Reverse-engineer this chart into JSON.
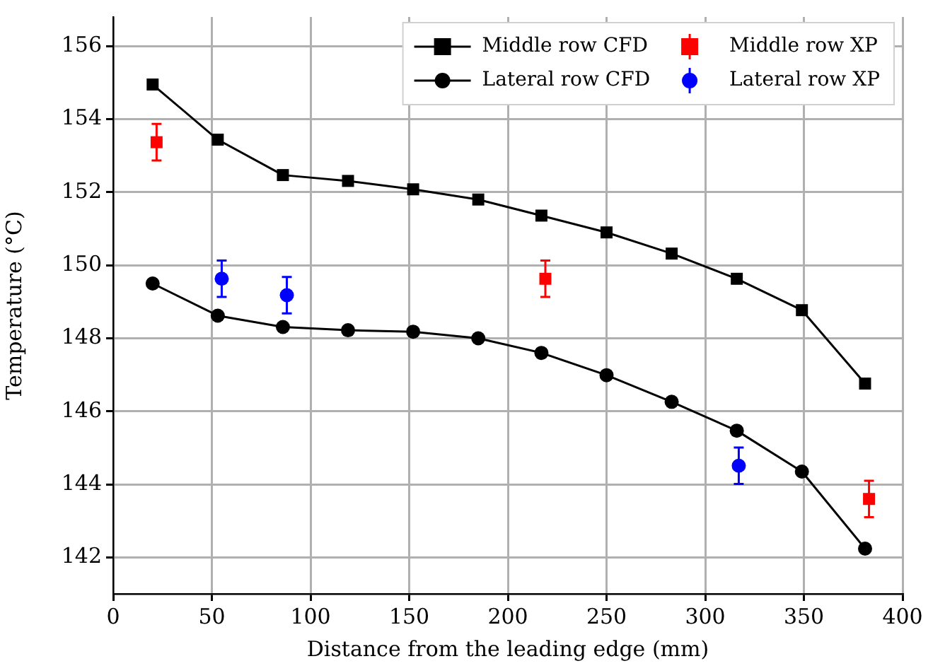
{
  "chart_data": {
    "type": "line",
    "xlabel": "Distance from the leading edge (mm)",
    "ylabel": "Temperature (°C)",
    "xlim": [
      0,
      400
    ],
    "xticks": [
      0,
      50,
      100,
      150,
      200,
      250,
      300,
      350,
      400
    ],
    "ylim": [
      141,
      156.8
    ],
    "yticks": [
      142,
      144,
      146,
      148,
      150,
      152,
      154,
      156
    ],
    "grid": true,
    "legend": "top right",
    "series": [
      {
        "name": "Middle row CFD",
        "type": "line",
        "color": "#000000",
        "marker": "square",
        "x": [
          20,
          53,
          86,
          119,
          152,
          185,
          217,
          250,
          283,
          316,
          349,
          381
        ],
        "values": [
          154.95,
          153.44,
          152.47,
          152.31,
          152.08,
          151.8,
          151.36,
          150.9,
          150.32,
          149.63,
          148.77,
          146.76
        ]
      },
      {
        "name": "Lateral row CFD",
        "type": "line",
        "color": "#000000",
        "marker": "circle",
        "x": [
          20,
          53,
          86,
          119,
          152,
          185,
          217,
          250,
          283,
          316,
          349,
          381
        ],
        "values": [
          149.5,
          148.62,
          148.31,
          148.22,
          148.18,
          148.0,
          147.6,
          146.99,
          146.26,
          145.47,
          144.35,
          142.24
        ]
      },
      {
        "name": "Middle row XP",
        "type": "scatter",
        "color": "#ff0000",
        "marker": "square",
        "x": [
          22,
          219,
          383
        ],
        "values": [
          153.37,
          149.63,
          143.6
        ],
        "errors": [
          0.5,
          0.5,
          0.5
        ]
      },
      {
        "name": "Lateral row XP",
        "type": "scatter",
        "color": "#0000ff",
        "marker": "circle",
        "x": [
          55,
          88,
          317
        ],
        "values": [
          149.63,
          149.18,
          144.51
        ],
        "errors": [
          0.5,
          0.5,
          0.5
        ]
      }
    ]
  }
}
